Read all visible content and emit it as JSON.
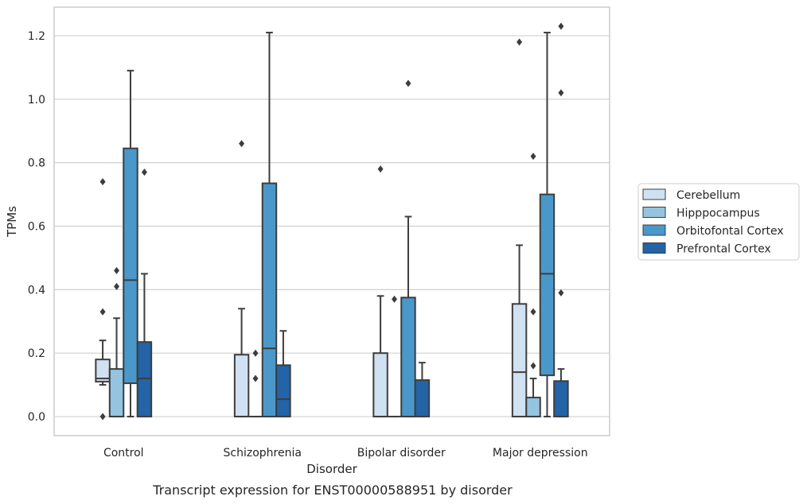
{
  "caption": "Transcript expression for ENST00000588951 by disorder",
  "chart_data": {
    "type": "box",
    "xlabel": "Disorder",
    "ylabel": "TPMs",
    "categories": [
      "Control",
      "Schizophrenia",
      "Bipolar disorder",
      "Major depression"
    ],
    "ylim": [
      -0.06,
      1.29
    ],
    "yticks": [
      "0.0",
      "0.2",
      "0.4",
      "0.6",
      "0.8",
      "1.0",
      "1.2"
    ],
    "grid": true,
    "legend_position": "right",
    "series": [
      {
        "name": "Cerebellum",
        "color": "#d0e1f2",
        "boxes": [
          {
            "q1": 0.11,
            "median": 0.12,
            "q3": 0.18,
            "whisker_low": 0.1,
            "whisker_high": 0.24,
            "outliers": [
              0.74,
              0.33,
              0.0
            ]
          },
          {
            "q1": 0.0,
            "median": 0.0,
            "q3": 0.195,
            "whisker_low": 0.0,
            "whisker_high": 0.34,
            "outliers": [
              0.86
            ]
          },
          {
            "q1": 0.0,
            "median": 0.0,
            "q3": 0.2,
            "whisker_low": 0.0,
            "whisker_high": 0.38,
            "outliers": [
              0.78
            ]
          },
          {
            "q1": 0.0,
            "median": 0.14,
            "q3": 0.355,
            "whisker_low": 0.0,
            "whisker_high": 0.54,
            "outliers": [
              1.18
            ]
          }
        ]
      },
      {
        "name": "Hipppocampus",
        "color": "#94c4df",
        "boxes": [
          {
            "q1": 0.0,
            "median": 0.0,
            "q3": 0.15,
            "whisker_low": 0.0,
            "whisker_high": 0.31,
            "outliers": [
              0.46,
              0.41
            ]
          },
          {
            "q1": 0.0,
            "median": 0.0,
            "q3": 0.0,
            "whisker_low": 0.0,
            "whisker_high": 0.0,
            "outliers": [
              0.2,
              0.12
            ]
          },
          {
            "q1": 0.0,
            "median": 0.0,
            "q3": 0.0,
            "whisker_low": 0.0,
            "whisker_high": 0.0,
            "outliers": [
              0.37
            ]
          },
          {
            "q1": 0.0,
            "median": 0.0,
            "q3": 0.06,
            "whisker_low": 0.0,
            "whisker_high": 0.12,
            "outliers": [
              0.82,
              0.33,
              0.16
            ]
          }
        ]
      },
      {
        "name": "Orbitofontal Cortex",
        "color": "#4a98c9",
        "boxes": [
          {
            "q1": 0.105,
            "median": 0.43,
            "q3": 0.845,
            "whisker_low": 0.0,
            "whisker_high": 1.09,
            "outliers": []
          },
          {
            "q1": 0.0,
            "median": 0.215,
            "q3": 0.735,
            "whisker_low": 0.0,
            "whisker_high": 1.21,
            "outliers": []
          },
          {
            "q1": 0.0,
            "median": 0.0,
            "q3": 0.375,
            "whisker_low": 0.0,
            "whisker_high": 0.63,
            "outliers": [
              1.05
            ]
          },
          {
            "q1": 0.13,
            "median": 0.45,
            "q3": 0.7,
            "whisker_low": 0.0,
            "whisker_high": 1.21,
            "outliers": []
          }
        ]
      },
      {
        "name": "Prefrontal Cortex",
        "color": "#2363a8",
        "boxes": [
          {
            "q1": 0.0,
            "median": 0.12,
            "q3": 0.235,
            "whisker_low": 0.0,
            "whisker_high": 0.45,
            "outliers": [
              0.77
            ]
          },
          {
            "q1": 0.0,
            "median": 0.055,
            "q3": 0.162,
            "whisker_low": 0.0,
            "whisker_high": 0.27,
            "outliers": []
          },
          {
            "q1": 0.0,
            "median": 0.0,
            "q3": 0.115,
            "whisker_low": 0.0,
            "whisker_high": 0.17,
            "outliers": []
          },
          {
            "q1": 0.0,
            "median": 0.0,
            "q3": 0.112,
            "whisker_low": 0.0,
            "whisker_high": 0.15,
            "outliers": [
              1.23,
              1.02,
              0.39
            ]
          }
        ]
      }
    ]
  }
}
